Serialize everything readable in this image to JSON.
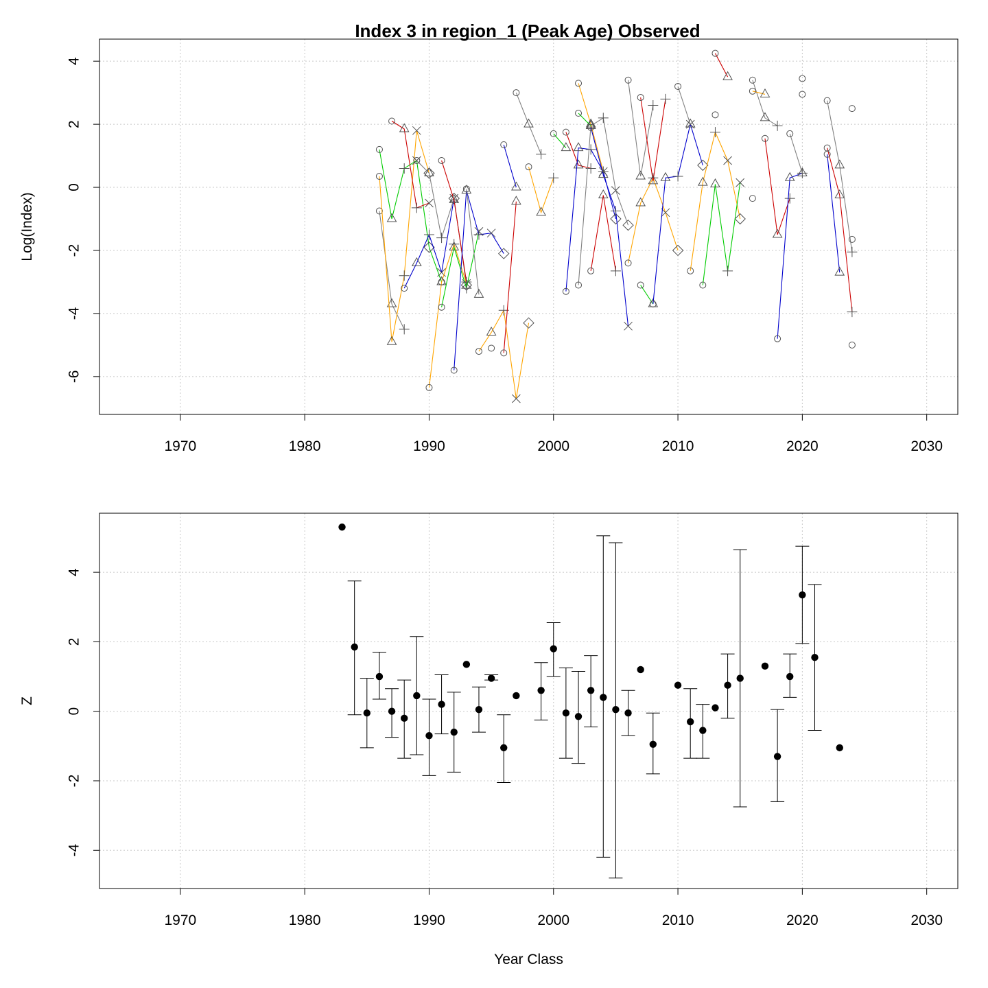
{
  "title": "Index 3 in region_1 (Peak Age) Observed",
  "chart_data": [
    {
      "type": "line",
      "title": "Index 3 in region_1 (Peak Age) Observed",
      "xlabel": "",
      "ylabel": "Log(Index)",
      "xlim": [
        1963.5,
        2032.5
      ],
      "ylim": [
        -7.2,
        4.7
      ],
      "xticks": [
        "1970",
        "1980",
        "1990",
        "2000",
        "2010",
        "2020",
        "2030"
      ],
      "yticks": [
        "-6",
        "-4",
        "-2",
        "0",
        "2",
        "4"
      ],
      "grid": true,
      "legend": "none",
      "colors": [
        "#808080",
        "#ffa500",
        "#00cc00",
        "#cc0000",
        "#0000cc"
      ],
      "marker_symbols": [
        "circle",
        "triangle",
        "plus",
        "cross",
        "diamond"
      ],
      "series": [
        {
          "x": [
            1986,
            1987,
            1988
          ],
          "y": [
            -0.75,
            -3.7,
            -4.5
          ]
        },
        {
          "x": [
            1986,
            1987,
            1988,
            1989,
            1990
          ],
          "y": [
            0.35,
            -4.9,
            -2.8,
            1.8,
            0.45
          ]
        },
        {
          "x": [
            1986,
            1987,
            1988,
            1989,
            1990,
            1991
          ],
          "y": [
            1.2,
            -1.0,
            0.6,
            0.85,
            -1.9,
            -3.0
          ]
        },
        {
          "x": [
            1987,
            1988,
            1989,
            1990
          ],
          "y": [
            2.1,
            1.85,
            -0.65,
            -0.5
          ]
        },
        {
          "x": [
            1988,
            1989,
            1990,
            1991,
            1992
          ],
          "y": [
            -3.2,
            -2.4,
            -1.5,
            -2.7,
            -0.35
          ]
        },
        {
          "x": [
            1989,
            1990,
            1991,
            1992,
            1993
          ],
          "y": [
            0.85,
            0.45,
            -1.6,
            -0.35,
            -3.1
          ]
        },
        {
          "x": [
            1990,
            1991,
            1992,
            1993
          ],
          "y": [
            -6.35,
            -3.0,
            -1.8,
            -3.05
          ]
        },
        {
          "x": [
            1991,
            1992,
            1993,
            1994
          ],
          "y": [
            -3.8,
            -1.9,
            -3.2,
            -1.4
          ]
        },
        {
          "x": [
            1991,
            1992,
            1993
          ],
          "y": [
            0.85,
            -0.4,
            -3.0
          ]
        },
        {
          "x": [
            1992,
            1993,
            1994,
            1995,
            1996
          ],
          "y": [
            -5.8,
            -0.1,
            -1.5,
            -1.45,
            -2.1
          ]
        },
        {
          "x": [
            1993,
            1994
          ],
          "y": [
            -0.05,
            -3.4
          ]
        },
        {
          "x": [
            1994,
            1995,
            1996,
            1997,
            1998
          ],
          "y": [
            -5.2,
            -4.6,
            -3.9,
            -6.7,
            -4.3
          ]
        },
        {
          "x": [
            1995
          ],
          "y": [
            -5.1
          ]
        },
        {
          "x": [
            1996,
            1997
          ],
          "y": [
            -5.25,
            -0.45
          ]
        },
        {
          "x": [
            1996,
            1997
          ],
          "y": [
            1.35,
            0.0
          ]
        },
        {
          "x": [
            1997,
            1998,
            1999
          ],
          "y": [
            3.0,
            2.0,
            1.05
          ]
        },
        {
          "x": [
            1998,
            1999,
            2000
          ],
          "y": [
            0.65,
            -0.8,
            0.3
          ]
        },
        {
          "x": [
            2000,
            2001
          ],
          "y": [
            1.7,
            1.25
          ]
        },
        {
          "x": [
            2001,
            2002,
            2003
          ],
          "y": [
            1.75,
            0.7,
            0.6
          ]
        },
        {
          "x": [
            2001,
            2002,
            2003,
            2004,
            2005
          ],
          "y": [
            -3.3,
            1.25,
            1.2,
            0.5,
            -1.0
          ]
        },
        {
          "x": [
            2002,
            2003,
            2004,
            2005,
            2006
          ],
          "y": [
            -3.1,
            1.95,
            2.2,
            -0.1,
            -1.2
          ]
        },
        {
          "x": [
            2002,
            2003,
            2004
          ],
          "y": [
            3.3,
            2.0,
            0.5
          ]
        },
        {
          "x": [
            2002,
            2003
          ],
          "y": [
            2.35,
            1.95
          ]
        },
        {
          "x": [
            2003,
            2004,
            2005
          ],
          "y": [
            -2.65,
            -0.25,
            -2.65
          ]
        },
        {
          "x": [
            2003,
            2004,
            2005,
            2006
          ],
          "y": [
            1.9,
            0.4,
            -0.75,
            -4.4
          ]
        },
        {
          "x": [
            2006,
            2007,
            2008
          ],
          "y": [
            3.4,
            0.35,
            2.6
          ]
        },
        {
          "x": [
            2006,
            2007,
            2008,
            2009,
            2010
          ],
          "y": [
            -2.4,
            -0.5,
            0.3,
            -0.8,
            -2.0
          ]
        },
        {
          "x": [
            2007,
            2008
          ],
          "y": [
            -3.1,
            -3.7
          ]
        },
        {
          "x": [
            2007,
            2008,
            2009
          ],
          "y": [
            2.85,
            0.2,
            2.8
          ]
        },
        {
          "x": [
            2008,
            2009,
            2010,
            2011,
            2012
          ],
          "y": [
            -3.7,
            0.3,
            0.35,
            2.0,
            0.7
          ]
        },
        {
          "x": [
            2010,
            2011
          ],
          "y": [
            3.2,
            2.0
          ]
        },
        {
          "x": [
            2011,
            2012,
            2013,
            2014,
            2015
          ],
          "y": [
            -2.65,
            0.15,
            1.75,
            0.85,
            -1.0
          ]
        },
        {
          "x": [
            2012,
            2013,
            2014,
            2015
          ],
          "y": [
            -3.1,
            0.1,
            -2.65,
            0.15
          ]
        },
        {
          "x": [
            2013,
            2014
          ],
          "y": [
            4.25,
            3.5
          ]
        },
        {
          "x": [
            2013
          ],
          "y": [
            2.3
          ]
        },
        {
          "x": [
            2016,
            2017,
            2018
          ],
          "y": [
            3.4,
            2.2,
            1.95
          ]
        },
        {
          "x": [
            2016,
            2017
          ],
          "y": [
            3.05,
            2.95
          ]
        },
        {
          "x": [
            2016
          ],
          "y": [
            -0.35
          ]
        },
        {
          "x": [
            2017,
            2018,
            2019
          ],
          "y": [
            1.55,
            -1.5,
            -0.35
          ]
        },
        {
          "x": [
            2018,
            2019,
            2020
          ],
          "y": [
            -4.8,
            0.3,
            0.45
          ]
        },
        {
          "x": [
            2019,
            2020
          ],
          "y": [
            1.7,
            0.45
          ]
        },
        {
          "x": [
            2020
          ],
          "y": [
            3.45
          ]
        },
        {
          "x": [
            2020
          ],
          "y": [
            2.95
          ]
        },
        {
          "x": [
            2022,
            2023,
            2024
          ],
          "y": [
            1.25,
            -0.25,
            -3.95
          ]
        },
        {
          "x": [
            2022,
            2023
          ],
          "y": [
            1.05,
            -2.7
          ]
        },
        {
          "x": [
            2022,
            2023,
            2024
          ],
          "y": [
            2.75,
            0.7,
            -2.05
          ]
        },
        {
          "x": [
            2024
          ],
          "y": [
            -1.65
          ]
        },
        {
          "x": [
            2024
          ],
          "y": [
            2.5
          ]
        },
        {
          "x": [
            2024
          ],
          "y": [
            -5.0
          ]
        }
      ]
    },
    {
      "type": "scatter",
      "title": "",
      "xlabel": "Year Class",
      "ylabel": "Z",
      "xlim": [
        1963.5,
        2032.5
      ],
      "ylim": [
        -5.1,
        5.7
      ],
      "xticks": [
        "1970",
        "1980",
        "1990",
        "2000",
        "2010",
        "2020",
        "2030"
      ],
      "yticks": [
        "-4",
        "-2",
        "0",
        "2",
        "4"
      ],
      "grid": true,
      "legend": "none",
      "points": [
        {
          "x": 1983,
          "y": 5.3
        },
        {
          "x": 1984,
          "y": 1.85,
          "lo": -0.1,
          "hi": 3.75
        },
        {
          "x": 1985,
          "y": -0.05,
          "lo": -1.05,
          "hi": 0.95
        },
        {
          "x": 1986,
          "y": 1.0,
          "lo": 0.35,
          "hi": 1.7
        },
        {
          "x": 1987,
          "y": 0.0,
          "lo": -0.75,
          "hi": 0.65
        },
        {
          "x": 1988,
          "y": -0.2,
          "lo": -1.35,
          "hi": 0.9
        },
        {
          "x": 1989,
          "y": 0.45,
          "lo": -1.25,
          "hi": 2.15
        },
        {
          "x": 1990,
          "y": -0.7,
          "lo": -1.85,
          "hi": 0.35
        },
        {
          "x": 1991,
          "y": 0.2,
          "lo": -0.65,
          "hi": 1.05
        },
        {
          "x": 1992,
          "y": -0.6,
          "lo": -1.75,
          "hi": 0.55
        },
        {
          "x": 1993,
          "y": 1.35
        },
        {
          "x": 1994,
          "y": 0.05,
          "lo": -0.6,
          "hi": 0.7
        },
        {
          "x": 1995,
          "y": 0.95,
          "lo": 0.9,
          "hi": 1.05
        },
        {
          "x": 1996,
          "y": -1.05,
          "lo": -2.05,
          "hi": -0.1
        },
        {
          "x": 1997,
          "y": 0.45
        },
        {
          "x": 1999,
          "y": 0.6,
          "lo": -0.25,
          "hi": 1.4
        },
        {
          "x": 2000,
          "y": 1.8,
          "lo": 1.0,
          "hi": 2.55
        },
        {
          "x": 2001,
          "y": -0.05,
          "lo": -1.35,
          "hi": 1.25
        },
        {
          "x": 2002,
          "y": -0.15,
          "lo": -1.5,
          "hi": 1.15
        },
        {
          "x": 2003,
          "y": 0.6,
          "lo": -0.45,
          "hi": 1.6
        },
        {
          "x": 2004,
          "y": 0.4,
          "lo": -4.2,
          "hi": 5.05
        },
        {
          "x": 2005,
          "y": 0.05,
          "lo": -4.8,
          "hi": 4.85
        },
        {
          "x": 2006,
          "y": -0.05,
          "lo": -0.7,
          "hi": 0.6
        },
        {
          "x": 2007,
          "y": 1.2
        },
        {
          "x": 2008,
          "y": -0.95,
          "lo": -1.8,
          "hi": -0.05
        },
        {
          "x": 2010,
          "y": 0.75
        },
        {
          "x": 2011,
          "y": -0.3,
          "lo": -1.35,
          "hi": 0.65
        },
        {
          "x": 2012,
          "y": -0.55,
          "lo": -1.35,
          "hi": 0.2
        },
        {
          "x": 2013,
          "y": 0.1
        },
        {
          "x": 2014,
          "y": 0.75,
          "lo": -0.2,
          "hi": 1.65
        },
        {
          "x": 2015,
          "y": 0.95,
          "lo": -2.75,
          "hi": 4.65
        },
        {
          "x": 2017,
          "y": 1.3
        },
        {
          "x": 2018,
          "y": -1.3,
          "lo": -2.6,
          "hi": 0.05
        },
        {
          "x": 2019,
          "y": 1.0,
          "lo": 0.4,
          "hi": 1.65
        },
        {
          "x": 2020,
          "y": 3.35,
          "lo": 1.95,
          "hi": 4.75
        },
        {
          "x": 2021,
          "y": 1.55,
          "lo": -0.55,
          "hi": 3.65
        },
        {
          "x": 2023,
          "y": -1.05
        }
      ]
    }
  ]
}
